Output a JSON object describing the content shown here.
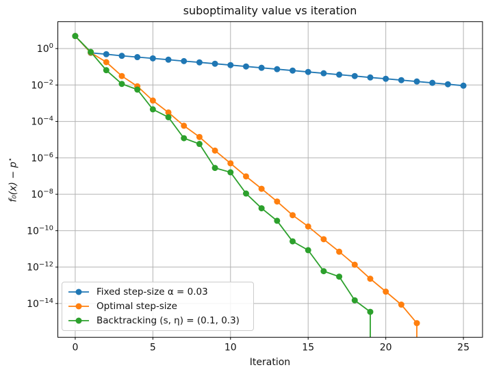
{
  "chart_data": {
    "type": "line",
    "title": "suboptimality value vs iteration",
    "xlabel": "Iteration",
    "ylabel": "f₀(x) − p",
    "ylabel_sup": "⋆",
    "grid": true,
    "legend_position": "lower left",
    "x_ticks": [
      0,
      5,
      10,
      15,
      20,
      25
    ],
    "y_tick_exponents": [
      0,
      -2,
      -4,
      -6,
      -8,
      -10,
      -12,
      -14
    ],
    "xlim": [
      -1.12,
      26.23
    ],
    "ylim": [
      1.4e-16,
      30
    ],
    "series": [
      {
        "name": "Fixed step-size α = 0.03",
        "color": "#1f77b4",
        "x": [
          0,
          1,
          2,
          3,
          4,
          5,
          6,
          7,
          8,
          9,
          10,
          11,
          12,
          13,
          14,
          15,
          16,
          17,
          18,
          19,
          20,
          21,
          22,
          23,
          24,
          25
        ],
        "values": [
          4.9,
          0.58,
          0.49,
          0.4,
          0.34,
          0.29,
          0.245,
          0.205,
          0.175,
          0.147,
          0.124,
          0.104,
          0.088,
          0.074,
          0.062,
          0.052,
          0.044,
          0.037,
          0.031,
          0.026,
          0.022,
          0.0185,
          0.0156,
          0.0131,
          0.011,
          0.0092
        ]
      },
      {
        "name": "Optimal step-size",
        "color": "#ff7f0e",
        "x": [
          0,
          1,
          2,
          3,
          4,
          5,
          6,
          7,
          8,
          9,
          10,
          11,
          12,
          13,
          14,
          15,
          16,
          17,
          18,
          19,
          20,
          21,
          22,
          23
        ],
        "values": [
          4.9,
          0.6,
          0.18,
          0.031,
          0.0085,
          0.0014,
          0.00031,
          5.8e-05,
          1.4e-05,
          2.5e-06,
          5e-07,
          9.6e-08,
          2e-08,
          4e-09,
          7.1e-10,
          1.7e-10,
          3.4e-11,
          7e-12,
          1.35e-12,
          2.3e-13,
          4.5e-14,
          8.7e-15,
          8.4e-16,
          0
        ]
      },
      {
        "name": "Backtracking (s, η) = (0.1, 0.3)",
        "color": "#2ca02c",
        "x": [
          0,
          1,
          2,
          3,
          4,
          5,
          6,
          7,
          8,
          9,
          10,
          11,
          12,
          13,
          14,
          15,
          16,
          17,
          18,
          19,
          20
        ],
        "values": [
          4.9,
          0.65,
          0.065,
          0.0115,
          0.0056,
          0.00046,
          0.00017,
          1.2e-05,
          5.8e-06,
          2.8e-07,
          1.6e-07,
          1.1e-08,
          1.7e-09,
          3.5e-10,
          2.6e-11,
          8.5e-12,
          6e-13,
          3e-13,
          1.5e-14,
          3.5e-15,
          0
        ]
      }
    ],
    "style": {
      "grid_color": "#b2b2b2",
      "spine_color": "#000000",
      "text_color": "#111111",
      "background": "#ffffff"
    }
  }
}
